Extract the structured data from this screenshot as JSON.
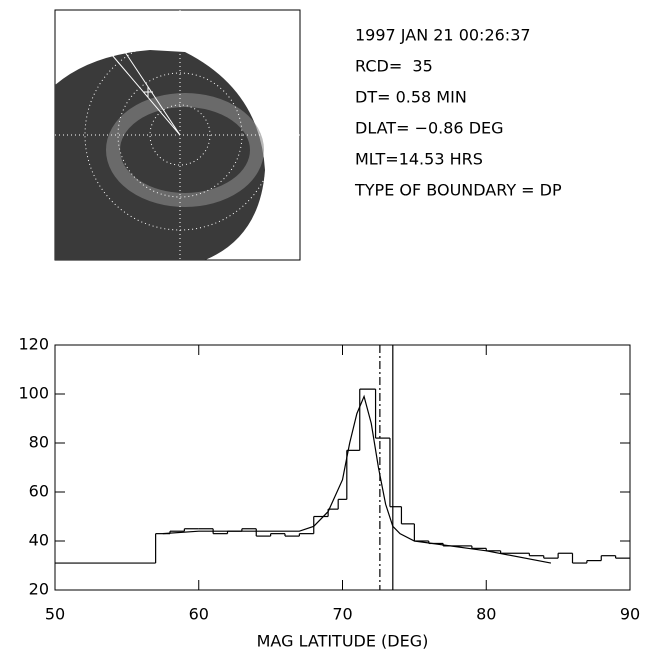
{
  "info": [
    "1997 JAN 21 00:26:37",
    "RCD=  35",
    "DT= 0.58 MIN",
    "DLAT= −0.86 DEG",
    "MLT=14.53 HRS",
    "TYPE OF BOUNDARY = DP"
  ],
  "chart_data": {
    "type": "histogram",
    "xlabel": "MAG LATITUDE (DEG)",
    "bins": [
      50,
      57,
      58,
      59,
      60,
      61,
      62,
      63,
      64,
      65,
      66,
      67,
      68,
      69,
      69.7,
      70.3,
      71.2,
      72.3,
      73.3,
      74.1,
      75,
      76,
      77,
      78,
      79,
      80,
      81,
      82,
      83,
      84,
      85,
      86,
      87,
      88,
      89,
      90
    ],
    "values": [
      31,
      43,
      44,
      45,
      45,
      43,
      44,
      45,
      42,
      43,
      42,
      43,
      50,
      53,
      57,
      77,
      102,
      82,
      54,
      47,
      40,
      39,
      38,
      38,
      37,
      36,
      35,
      35,
      34,
      33,
      35,
      31,
      32,
      34,
      33
    ],
    "fit": {
      "x": [
        57.5,
        60,
        65,
        67,
        68,
        69,
        70,
        70.5,
        71,
        71.5,
        72,
        72.5,
        73,
        73.5,
        74,
        75,
        80,
        84.5
      ],
      "values": [
        43,
        44,
        44,
        44,
        46,
        52,
        65,
        80,
        92,
        99,
        88,
        70,
        55,
        46,
        43,
        40,
        36,
        31
      ]
    },
    "vlines": [
      {
        "x": 72.6,
        "style": "dashdot"
      },
      {
        "x": 73.5,
        "style": "solid"
      }
    ],
    "color": "#000000",
    "xlim": [
      50,
      90
    ],
    "xticks": [
      50,
      60,
      70,
      80,
      90
    ],
    "ylim": [
      20,
      120
    ],
    "yticks": [
      20,
      40,
      60,
      80,
      100,
      120
    ]
  }
}
